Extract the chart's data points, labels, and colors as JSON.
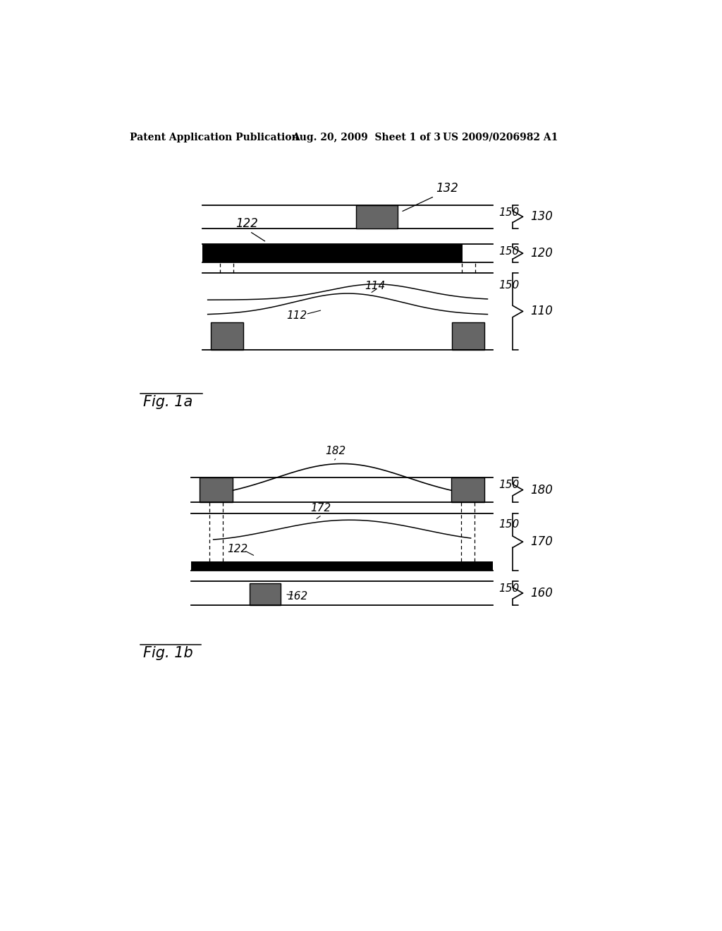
{
  "bg_color": "#ffffff",
  "header_left": "Patent Application Publication",
  "header_mid": "Aug. 20, 2009  Sheet 1 of 3",
  "header_right": "US 2009/0206982 A1",
  "fig1a_label": "Fig. 1a",
  "fig1b_label": "Fig. 1b",
  "gray_block": "#666666",
  "lw_thin": 1.3,
  "d1_xl": 0.2,
  "d1_xr": 0.72,
  "d1_xbr": 0.755,
  "d2_xl": 0.18,
  "d2_xr": 0.72,
  "d2_xbr": 0.755
}
